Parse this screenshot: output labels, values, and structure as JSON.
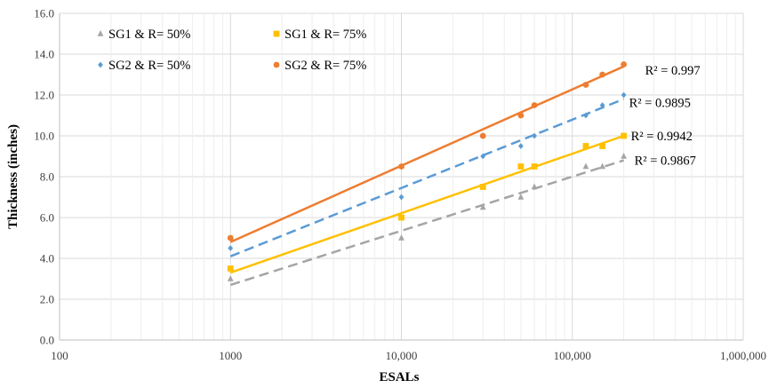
{
  "chart_data": {
    "type": "scatter",
    "xscale": "log",
    "xlabel": "ESALs",
    "ylabel": "Thickness (inches)",
    "xlim": [
      100,
      1000000
    ],
    "ylim": [
      0,
      16
    ],
    "xticks": [
      100,
      1000,
      10000,
      100000,
      1000000
    ],
    "xtick_labels": [
      "100",
      "1000",
      "10,000",
      "100,000",
      "1,000,000"
    ],
    "yticks": [
      0,
      2,
      4,
      6,
      8,
      10,
      12,
      14,
      16
    ],
    "ytick_labels": [
      "0.0",
      "2.0",
      "4.0",
      "6.0",
      "8.0",
      "10.0",
      "12.0",
      "14.0",
      "16.0"
    ],
    "grid": {
      "x_major": true,
      "x_minor": true,
      "y_major": true
    },
    "legend_position": "top-left",
    "series": [
      {
        "name": "SG1 & R= 50%",
        "marker": "triangle",
        "color": "#a5a5a5",
        "trendline": "dashed",
        "x": [
          1000,
          10000,
          30000,
          50000,
          60000,
          120000,
          150000,
          200000
        ],
        "y": [
          3.0,
          5.0,
          6.5,
          7.0,
          7.5,
          8.5,
          8.5,
          9.0
        ],
        "fit": {
          "x0": 1000,
          "y0": 2.7,
          "x1": 200000,
          "y1": 8.8
        },
        "r2_label": "R² = 0.9867"
      },
      {
        "name": "SG1 & R= 75%",
        "marker": "square",
        "color": "#ffc000",
        "trendline": "solid",
        "x": [
          1000,
          10000,
          30000,
          50000,
          60000,
          120000,
          150000,
          200000
        ],
        "y": [
          3.5,
          6.0,
          7.5,
          8.5,
          8.5,
          9.5,
          9.5,
          10.0
        ],
        "fit": {
          "x0": 1000,
          "y0": 3.3,
          "x1": 200000,
          "y1": 10.0
        },
        "r2_label": "R² = 0.9942"
      },
      {
        "name": "SG2  & R= 50%",
        "marker": "diamond",
        "color": "#5b9bd5",
        "trendline": "dashed",
        "x": [
          1000,
          10000,
          30000,
          50000,
          60000,
          120000,
          150000,
          200000
        ],
        "y": [
          4.5,
          7.0,
          9.0,
          9.5,
          10.0,
          11.0,
          11.5,
          12.0
        ],
        "fit": {
          "x0": 1000,
          "y0": 4.1,
          "x1": 200000,
          "y1": 11.8
        },
        "r2_label": "R² = 0.9895"
      },
      {
        "name": "SG2 & R= 75%",
        "marker": "circle",
        "color": "#ed7d31",
        "trendline": "solid",
        "x": [
          1000,
          10000,
          30000,
          50000,
          60000,
          120000,
          150000,
          200000
        ],
        "y": [
          5.0,
          8.5,
          10.0,
          11.0,
          11.5,
          12.5,
          13.0,
          13.5
        ],
        "fit": {
          "x0": 1000,
          "y0": 4.8,
          "x1": 200000,
          "y1": 13.4
        },
        "r2_label": "R² = 0.997"
      }
    ]
  }
}
